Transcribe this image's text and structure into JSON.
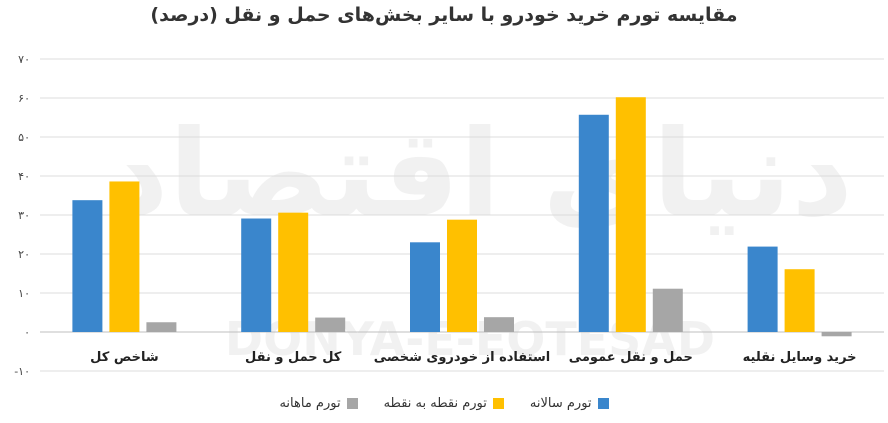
{
  "chart_data": {
    "type": "bar",
    "title": "مقایسه تورم خرید خودرو با سایر بخش‌های حمل و نقل (درصد)",
    "categories": [
      "شاخص کل",
      "کل حمل و نقل",
      "استفاده از خودروی شخصی",
      "حمل و نقل عمومی",
      "خرید وسایل نقلیه"
    ],
    "series": [
      {
        "name": "تورم سالانه",
        "color": "#3a86cc",
        "values": [
          33.8,
          29.1,
          23.0,
          55.7,
          21.9
        ]
      },
      {
        "name": "تورم نقطه به نقطه",
        "color": "#ffc000",
        "values": [
          38.6,
          30.6,
          28.8,
          60.2,
          16.1
        ]
      },
      {
        "name": "تورم ماهانه",
        "color": "#a6a6a6",
        "values": [
          2.5,
          3.7,
          3.8,
          11.1,
          -1.1
        ]
      }
    ],
    "ylim": [
      -10,
      70
    ],
    "yticks": [
      70,
      60,
      50,
      40,
      30,
      20,
      10,
      0,
      -10
    ],
    "ytick_labels": [
      "۷۰",
      "۶۰",
      "۵۰",
      "۴۰",
      "۳۰",
      "۲۰",
      "۱۰",
      "۰",
      "-۱۰"
    ],
    "grid": true,
    "legend": "bottom",
    "watermark": "DONYA-E-EQTESAD",
    "watermark_logo": "دنیای اقتصاد"
  }
}
